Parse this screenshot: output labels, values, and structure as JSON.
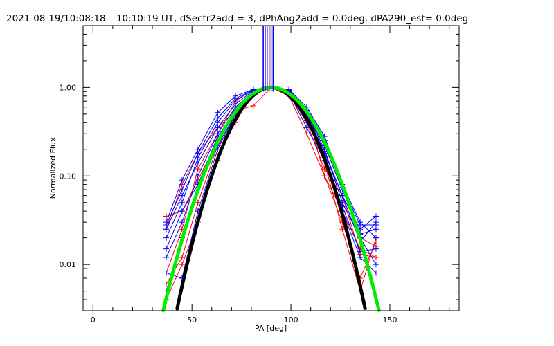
{
  "chart_data": {
    "type": "line",
    "title": "2021-08-19/10:08:18 – 10:10:19 UT, dSectr2add = 3, dPhAng2add = 0.0deg, dPA290_est=  0.0deg",
    "xlabel": "PA [deg]",
    "ylabel": "Normalized Flux",
    "xlim": [
      -5,
      185
    ],
    "ylim": [
      0.003,
      5.0
    ],
    "yscale": "log",
    "grid": false,
    "x_ticks": [
      {
        "value": 0,
        "label": "0"
      },
      {
        "value": 50,
        "label": "50"
      },
      {
        "value": 100,
        "label": "100"
      },
      {
        "value": 150,
        "label": "150"
      }
    ],
    "y_ticks": [
      {
        "value": 0.01,
        "label": "0.01"
      },
      {
        "value": 0.1,
        "label": "0.10"
      },
      {
        "value": 1.0,
        "label": "1.00"
      }
    ],
    "sector_pa": [
      37,
      45,
      53,
      63,
      72,
      81,
      90,
      99,
      108,
      117,
      126,
      135,
      143
    ],
    "series": [
      {
        "color": "#ff0000",
        "values": [
          0.025,
          0.08,
          0.18,
          0.35,
          0.55,
          0.62,
          1.0,
          0.8,
          0.3,
          0.1,
          0.04,
          0.015,
          0.012
        ]
      },
      {
        "color": "#ff0000",
        "values": [
          0.006,
          0.012,
          0.05,
          0.22,
          0.4,
          0.9,
          1.0,
          0.9,
          0.5,
          0.2,
          0.05,
          0.02,
          0.016
        ]
      },
      {
        "color": "#ff0000",
        "values": [
          0.008,
          0.025,
          0.12,
          0.3,
          0.7,
          0.95,
          1.0,
          0.95,
          0.55,
          0.1,
          0.03,
          0.007,
          0.018
        ]
      },
      {
        "color": "#ff0000",
        "values": [
          0.004,
          0.01,
          0.03,
          0.15,
          0.45,
          0.85,
          1.0,
          0.92,
          0.45,
          0.14,
          0.025,
          0.005,
          0.02
        ]
      },
      {
        "color": "#ff0000",
        "values": [
          0.035,
          0.04,
          0.09,
          0.25,
          0.6,
          0.88,
          1.0,
          0.85,
          0.4,
          0.12,
          0.06,
          0.013,
          0.012
        ]
      },
      {
        "color": "#0000ff",
        "values": [
          0.03,
          0.09,
          0.2,
          0.52,
          0.8,
          0.95,
          1.0,
          0.85,
          0.42,
          0.18,
          0.06,
          0.025,
          0.035
        ]
      },
      {
        "color": "#0000ff",
        "values": [
          0.012,
          0.03,
          0.1,
          0.3,
          0.6,
          0.9,
          1.0,
          0.9,
          0.5,
          0.2,
          0.05,
          0.02,
          0.01
        ]
      },
      {
        "color": "#0000ff",
        "values": [
          0.02,
          0.05,
          0.16,
          0.4,
          0.72,
          0.93,
          1.0,
          0.95,
          0.6,
          0.28,
          0.08,
          0.03,
          0.02
        ]
      },
      {
        "color": "#0000ff",
        "values": [
          0.008,
          0.007,
          0.04,
          0.2,
          0.5,
          0.88,
          1.0,
          0.88,
          0.35,
          0.15,
          0.04,
          0.012,
          0.008
        ]
      },
      {
        "color": "#0000ff",
        "values": [
          0.025,
          0.06,
          0.14,
          0.35,
          0.65,
          0.92,
          1.0,
          0.92,
          0.5,
          0.22,
          0.07,
          0.022,
          0.025
        ]
      },
      {
        "color": "#0000ff",
        "values": [
          0.015,
          0.04,
          0.08,
          0.28,
          0.55,
          0.9,
          1.0,
          0.9,
          0.46,
          0.19,
          0.06,
          0.018,
          0.03
        ]
      },
      {
        "color": "#0000ff",
        "values": [
          0.005,
          0.02,
          0.07,
          0.22,
          0.5,
          0.85,
          1.0,
          0.87,
          0.42,
          0.16,
          0.045,
          0.014,
          0.015
        ]
      },
      {
        "color": "#0000ff",
        "values": [
          0.028,
          0.07,
          0.18,
          0.45,
          0.75,
          0.94,
          1.0,
          0.93,
          0.55,
          0.25,
          0.075,
          0.028,
          0.028
        ]
      }
    ],
    "model_curves": [
      {
        "color": "#000000",
        "center": 90,
        "sigma": 14.0
      },
      {
        "color": "#00ee00",
        "center": 90,
        "sigma": 16.0
      }
    ]
  }
}
